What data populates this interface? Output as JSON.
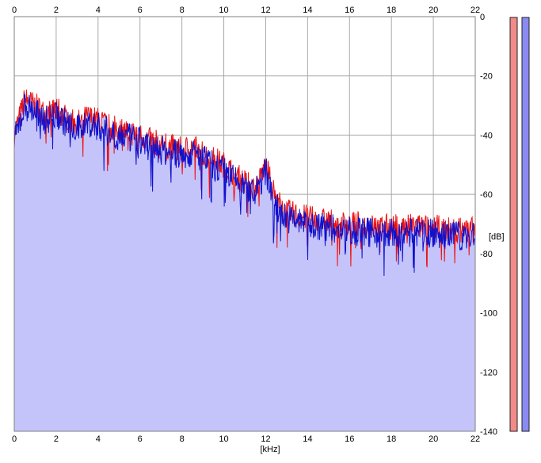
{
  "chart_data": {
    "type": "area",
    "title": "",
    "xlabel": "[kHz]",
    "ylabel": "[dB]",
    "xlim": [
      0,
      22
    ],
    "ylim": [
      -140,
      0
    ],
    "x_ticks": [
      0,
      2,
      4,
      6,
      8,
      10,
      12,
      14,
      16,
      18,
      20,
      22
    ],
    "y_ticks": [
      0,
      -20,
      -40,
      -60,
      -80,
      -100,
      -120,
      -140
    ],
    "x_tick_labels": [
      "0",
      "2",
      "4",
      "6",
      "8",
      "10",
      "12",
      "14",
      "16",
      "18",
      "20",
      "22"
    ],
    "y_tick_labels": [
      "0",
      "-20",
      "-40",
      "-60",
      "-80",
      "-100",
      "-120",
      "-140"
    ],
    "grid": true,
    "series": [
      {
        "color": "#ee1111",
        "x": [
          0,
          0.5,
          1,
          1.5,
          2,
          2.5,
          3,
          3.5,
          4,
          4.5,
          5,
          5.5,
          6,
          6.5,
          7,
          7.5,
          8,
          8.5,
          9,
          9.5,
          10,
          10.5,
          11,
          11.5,
          12,
          12.5,
          13,
          13.5,
          14,
          14.5,
          15,
          15.5,
          16,
          16.5,
          17,
          17.5,
          18,
          18.5,
          19,
          19.5,
          20,
          20.5,
          21,
          21.5,
          22
        ],
        "values": [
          -40,
          -28,
          -30,
          -33,
          -31,
          -34,
          -36,
          -34,
          -35,
          -37,
          -38,
          -39,
          -40,
          -42,
          -43,
          -44,
          -45,
          -44,
          -46,
          -48,
          -50,
          -53,
          -56,
          -58,
          -50,
          -62,
          -66,
          -67,
          -68,
          -69,
          -69,
          -70,
          -70,
          -70,
          -71,
          -71,
          -71,
          -71,
          -71,
          -71,
          -71,
          -72,
          -72,
          -72,
          -72
        ]
      },
      {
        "color": "#1111cc",
        "x": [
          0,
          0.5,
          1,
          1.5,
          2,
          2.5,
          3,
          3.5,
          4,
          4.5,
          5,
          5.5,
          6,
          6.5,
          7,
          7.5,
          8,
          8.5,
          9,
          9.5,
          10,
          10.5,
          11,
          11.5,
          12,
          12.5,
          13,
          13.5,
          14,
          14.5,
          15,
          15.5,
          16,
          16.5,
          17,
          17.5,
          18,
          18.5,
          19,
          19.5,
          20,
          20.5,
          21,
          21.5,
          22
        ],
        "values": [
          -42,
          -30,
          -32,
          -35,
          -33,
          -36,
          -38,
          -36,
          -37,
          -39,
          -40,
          -41,
          -42,
          -44,
          -45,
          -46,
          -47,
          -46,
          -48,
          -50,
          -52,
          -55,
          -58,
          -60,
          -52,
          -64,
          -68,
          -69,
          -70,
          -71,
          -71,
          -72,
          -72,
          -72,
          -73,
          -73,
          -73,
          -73,
          -73,
          -73,
          -73,
          -74,
          -74,
          -74,
          -74
        ]
      }
    ],
    "fill_color": "#c4c4fa",
    "level_meters": [
      {
        "color": "#f28a8a"
      },
      {
        "color": "#8a8af2"
      }
    ]
  }
}
